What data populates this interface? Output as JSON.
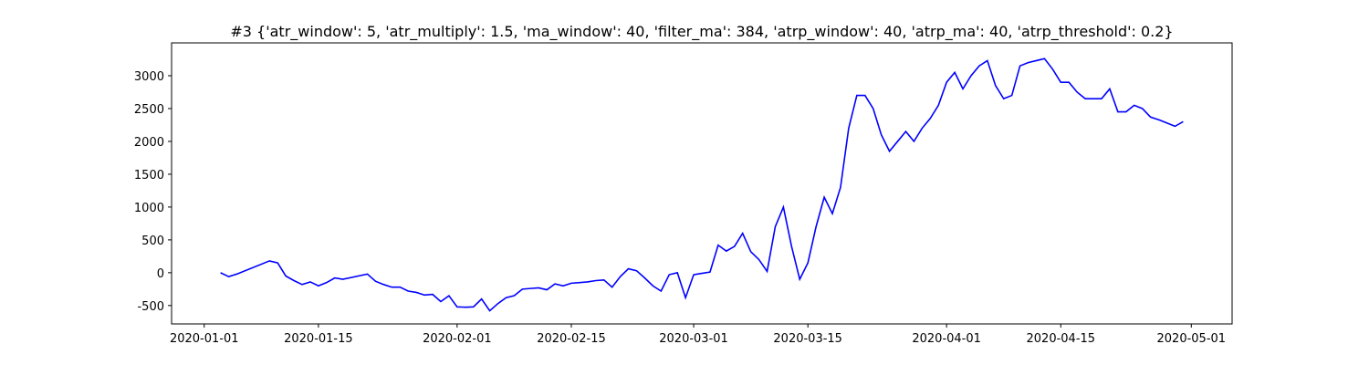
{
  "chart_data": {
    "type": "line",
    "title": "#3 {'atr_window': 5, 'atr_multiply': 1.5, 'ma_window': 40, 'filter_ma': 384, 'atrp_window': 40, 'atrp_ma': 40, 'atrp_threshold': 0.2}",
    "x": [
      "2020-01-03",
      "2020-01-04",
      "2020-01-05",
      "2020-01-09",
      "2020-01-10",
      "2020-01-11",
      "2020-01-12",
      "2020-01-13",
      "2020-01-14",
      "2020-01-15",
      "2020-01-16",
      "2020-01-17",
      "2020-01-18",
      "2020-01-21",
      "2020-01-22",
      "2020-01-23",
      "2020-01-24",
      "2020-01-25",
      "2020-01-26",
      "2020-01-27",
      "2020-01-28",
      "2020-01-29",
      "2020-01-30",
      "2020-01-31",
      "2020-02-01",
      "2020-02-02",
      "2020-02-03",
      "2020-02-04",
      "2020-02-05",
      "2020-02-06",
      "2020-02-07",
      "2020-02-08",
      "2020-02-09",
      "2020-02-10",
      "2020-02-11",
      "2020-02-12",
      "2020-02-13",
      "2020-02-14",
      "2020-02-15",
      "2020-02-16",
      "2020-02-17",
      "2020-02-18",
      "2020-02-19",
      "2020-02-20",
      "2020-02-21",
      "2020-02-22",
      "2020-02-23",
      "2020-02-24",
      "2020-02-25",
      "2020-02-26",
      "2020-02-27",
      "2020-02-28",
      "2020-02-29",
      "2020-03-01",
      "2020-03-02",
      "2020-03-03",
      "2020-03-04",
      "2020-03-05",
      "2020-03-06",
      "2020-03-07",
      "2020-03-08",
      "2020-03-09",
      "2020-03-10",
      "2020-03-11",
      "2020-03-12",
      "2020-03-13",
      "2020-03-14",
      "2020-03-15",
      "2020-03-16",
      "2020-03-17",
      "2020-03-18",
      "2020-03-19",
      "2020-03-20",
      "2020-03-21",
      "2020-03-22",
      "2020-03-23",
      "2020-03-24",
      "2020-03-25",
      "2020-03-26",
      "2020-03-27",
      "2020-03-28",
      "2020-03-29",
      "2020-03-30",
      "2020-03-31",
      "2020-04-01",
      "2020-04-02",
      "2020-04-03",
      "2020-04-04",
      "2020-04-05",
      "2020-04-06",
      "2020-04-07",
      "2020-04-08",
      "2020-04-09",
      "2020-04-10",
      "2020-04-11",
      "2020-04-12",
      "2020-04-13",
      "2020-04-14",
      "2020-04-15",
      "2020-04-16",
      "2020-04-17",
      "2020-04-18",
      "2020-04-19",
      "2020-04-20",
      "2020-04-21",
      "2020-04-22",
      "2020-04-23",
      "2020-04-24",
      "2020-04-25",
      "2020-04-26",
      "2020-04-27",
      "2020-04-28",
      "2020-04-29",
      "2020-04-30"
    ],
    "series": [
      {
        "color": "#0000ff",
        "values": [
          0,
          -60,
          -20,
          180,
          150,
          -50,
          -120,
          -180,
          -140,
          -200,
          -150,
          -80,
          -100,
          -20,
          -130,
          -180,
          -220,
          -220,
          -280,
          -300,
          -340,
          -330,
          -440,
          -350,
          -520,
          -525,
          -520,
          -400,
          -580,
          -470,
          -380,
          -350,
          -250,
          -240,
          -230,
          -260,
          -170,
          -200,
          -160,
          -150,
          -140,
          -120,
          -110,
          -220,
          -60,
          60,
          30,
          -80,
          -200,
          -280,
          -30,
          0,
          -380,
          -30,
          -10,
          10,
          420,
          330,
          400,
          600,
          320,
          200,
          20,
          700,
          1000,
          400,
          -100,
          150,
          700,
          1150,
          900,
          1300,
          2200,
          2700,
          2700,
          2500,
          2100,
          1850,
          2000,
          2150,
          2000,
          2200,
          2350,
          2550,
          2900,
          3050,
          2800,
          3000,
          3150,
          3230,
          2850,
          2650,
          2700,
          3150,
          3200,
          3230,
          3260,
          3100,
          2900,
          2900,
          2750,
          2650,
          2650,
          2650,
          2800,
          2450,
          2450,
          2550,
          2500,
          2370,
          2330,
          2280,
          2230,
          2300
        ]
      }
    ],
    "xlim": [
      "2019-12-28",
      "2020-05-06"
    ],
    "xticks": [
      "2020-01-01",
      "2020-01-15",
      "2020-02-01",
      "2020-02-15",
      "2020-03-01",
      "2020-03-15",
      "2020-04-01",
      "2020-04-15",
      "2020-05-01"
    ],
    "ylim": [
      -780,
      3500
    ],
    "yticks": [
      -500,
      0,
      500,
      1000,
      1500,
      2000,
      2500,
      3000
    ]
  }
}
